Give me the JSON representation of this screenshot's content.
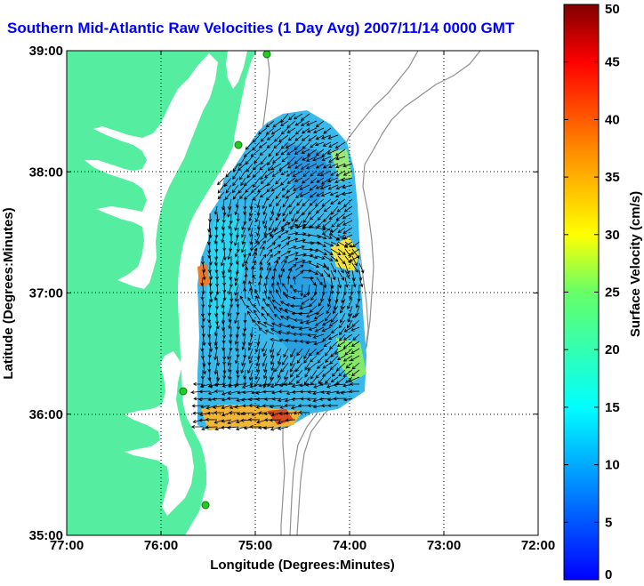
{
  "title": "Southern Mid-Atlantic Raw Velocities (1 Day Avg) 2007/11/14 0000 GMT",
  "axes": {
    "xlabel": "Longitude (Degrees:Minutes)",
    "ylabel": "Latitude (Degrees:Minutes)",
    "x_ticks": [
      "77:00",
      "76:00",
      "75:00",
      "74:00",
      "73:00",
      "72:00"
    ],
    "y_ticks": [
      "39:00",
      "38:00",
      "37:00",
      "36:00",
      "35:00"
    ],
    "x_range": [
      -77,
      -72
    ],
    "y_range": [
      35,
      39
    ],
    "grid": "dotted"
  },
  "colorbar": {
    "label": "Surface Velocity (cm/s)",
    "ticks": [
      "0",
      "5",
      "10",
      "15",
      "20",
      "25",
      "30",
      "35",
      "40",
      "45",
      "50"
    ],
    "range": [
      0,
      50
    ],
    "colormap": "jet"
  },
  "colors": {
    "land": "#55eea0",
    "bathymetry": "#909090",
    "site_marker": "#22cc22",
    "title": "#0000ff"
  }
}
